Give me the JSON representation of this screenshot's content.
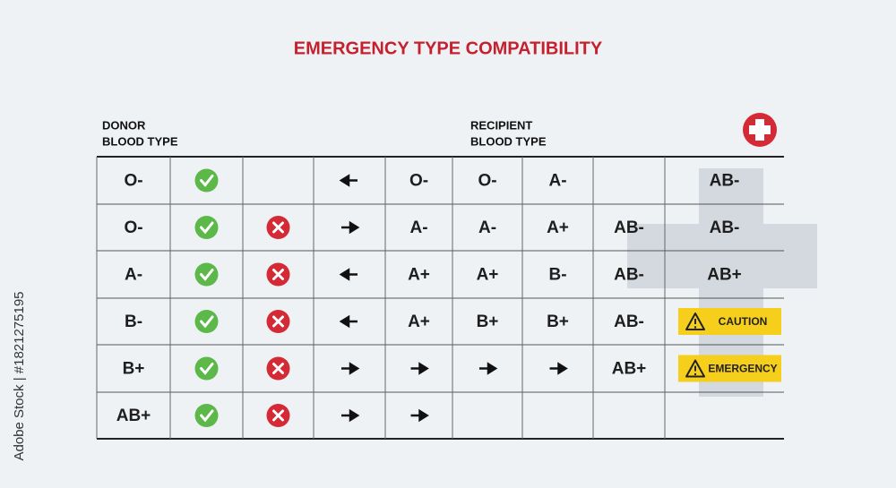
{
  "title": "EMERGENCY TYPE COMPATIBILITY",
  "donor_label": [
    "DONOR",
    "BLOOD TYPE"
  ],
  "recipient_label": [
    "RECIPIENT",
    "BLOOD TYPE"
  ],
  "side_text": "Adobe Stock | #1821275195",
  "table": {
    "rows": [
      {
        "donor": "O-",
        "c5": "O-",
        "c6": "O-",
        "c7": "A-",
        "c9": "AB-"
      },
      {
        "donor": "O-",
        "c5": "A-",
        "c6": "A-",
        "c7": "A+",
        "c8": "AB-",
        "c9": "AB-"
      },
      {
        "donor": "A-",
        "c5": "A+",
        "c6": "A+",
        "c7": "B-",
        "c8": "AB-",
        "c9": "AB+"
      },
      {
        "donor": "B-",
        "c5": "A+",
        "c6": "B+",
        "c7": "B+",
        "c8": "AB-",
        "badge": "CAUTION"
      },
      {
        "donor": "B+",
        "c8": "AB+",
        "badge": "EMERGENCY"
      },
      {
        "donor": "AB+"
      }
    ]
  }
}
